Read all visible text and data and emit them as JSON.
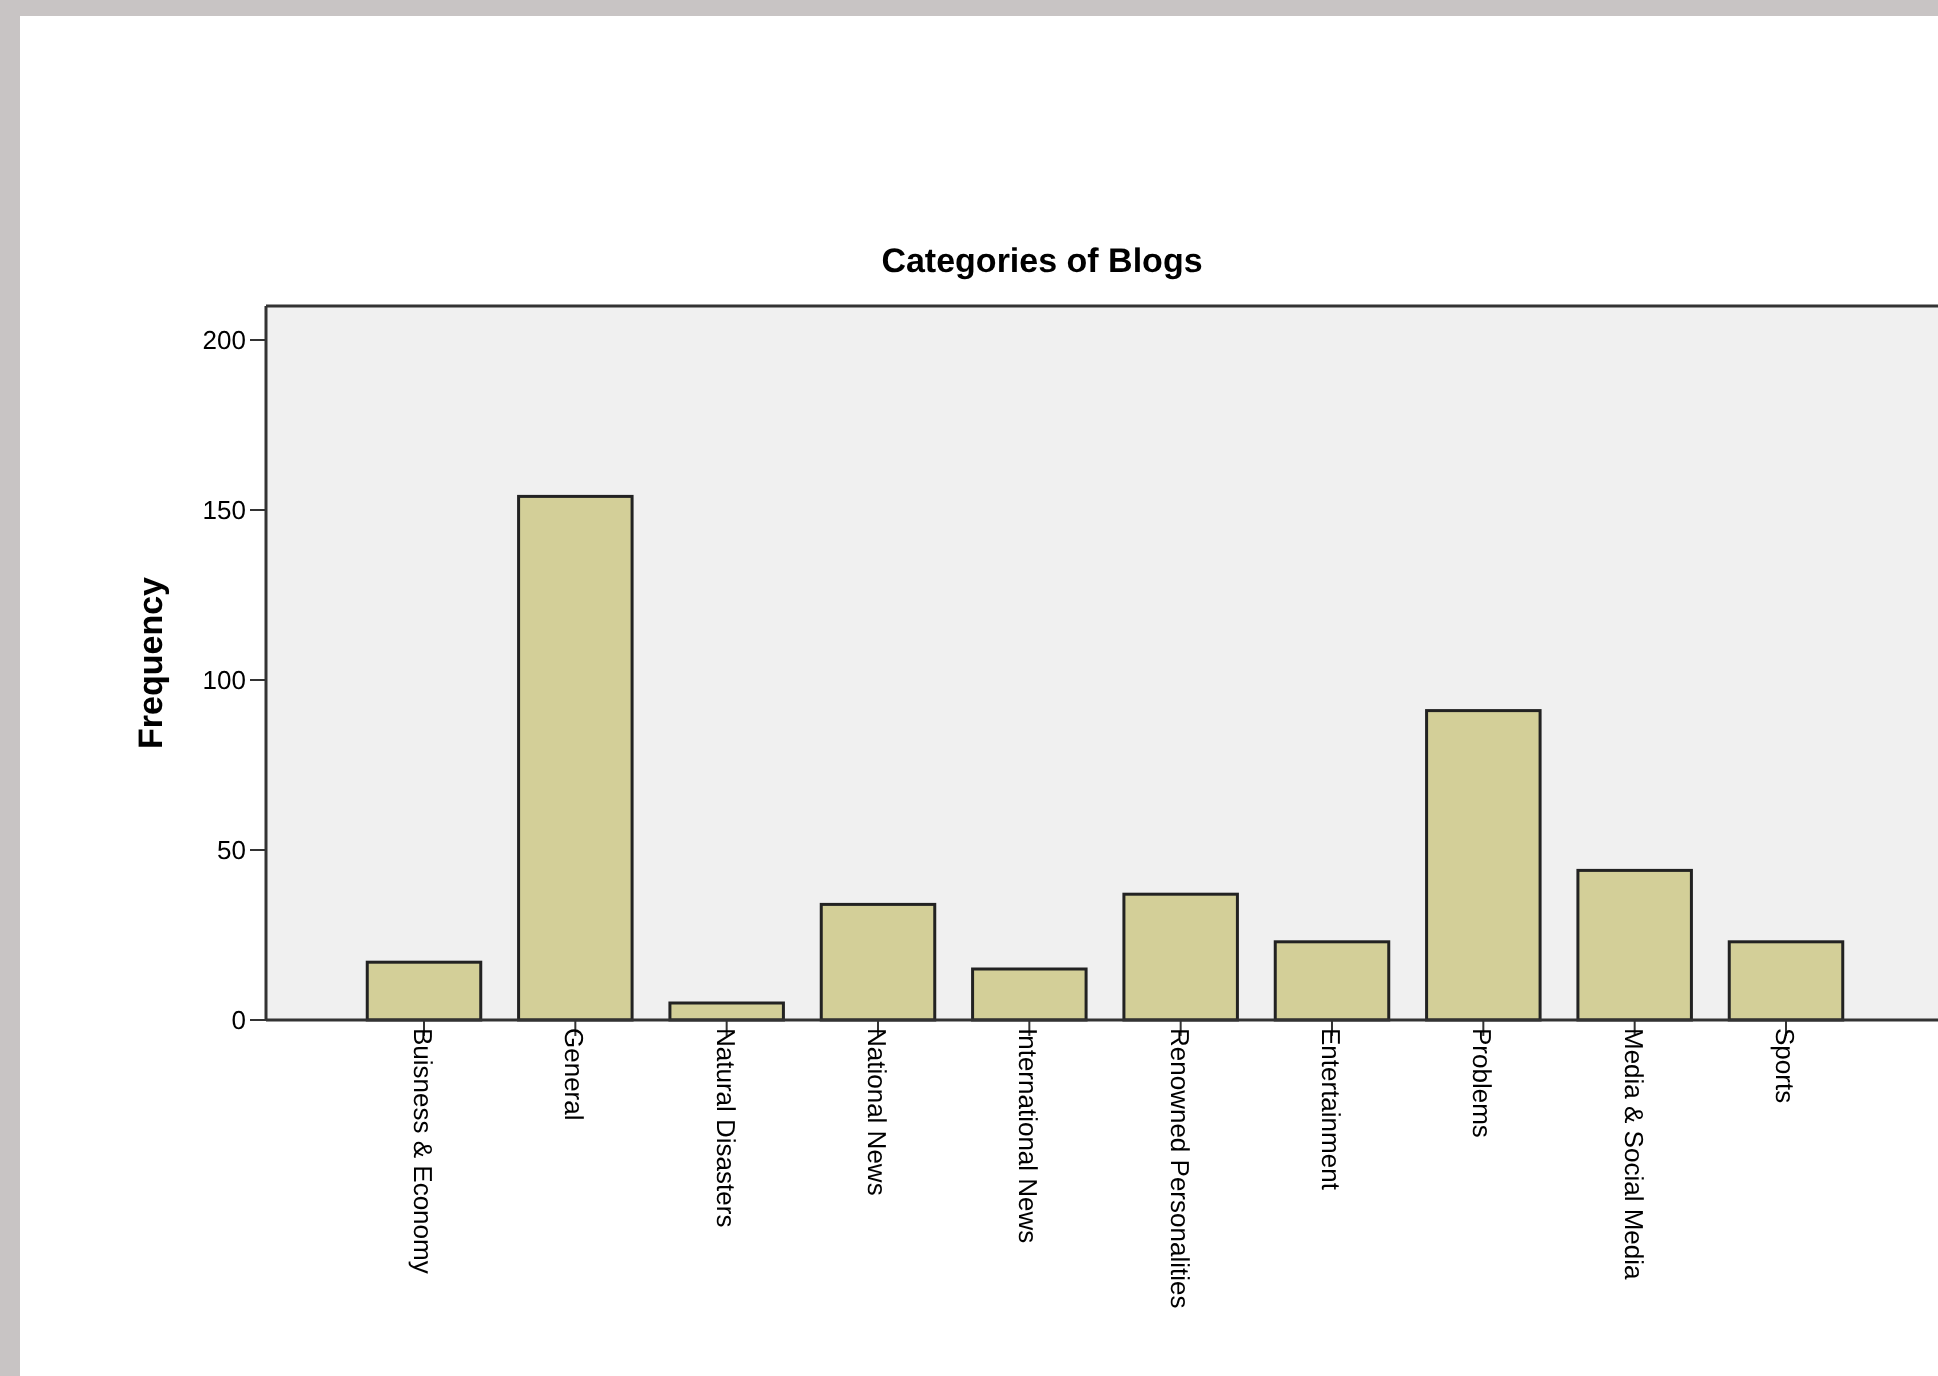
{
  "chart_data": {
    "type": "bar",
    "title": "Categories of Blogs",
    "ylabel": "Frequency",
    "categories": [
      "Buisness & Economy",
      "General",
      "Natural Disasters",
      "National News",
      "International News",
      "Renowned Personalities",
      "Entertainment",
      "Problems",
      "Media & Social Media",
      "Sports"
    ],
    "values": [
      17,
      154,
      5,
      34,
      15,
      37,
      23,
      91,
      44,
      23
    ],
    "color": "#d3cf98",
    "ylim": [
      0,
      210
    ],
    "yticks": [
      0,
      50,
      100,
      150,
      200
    ],
    "grid": false
  }
}
